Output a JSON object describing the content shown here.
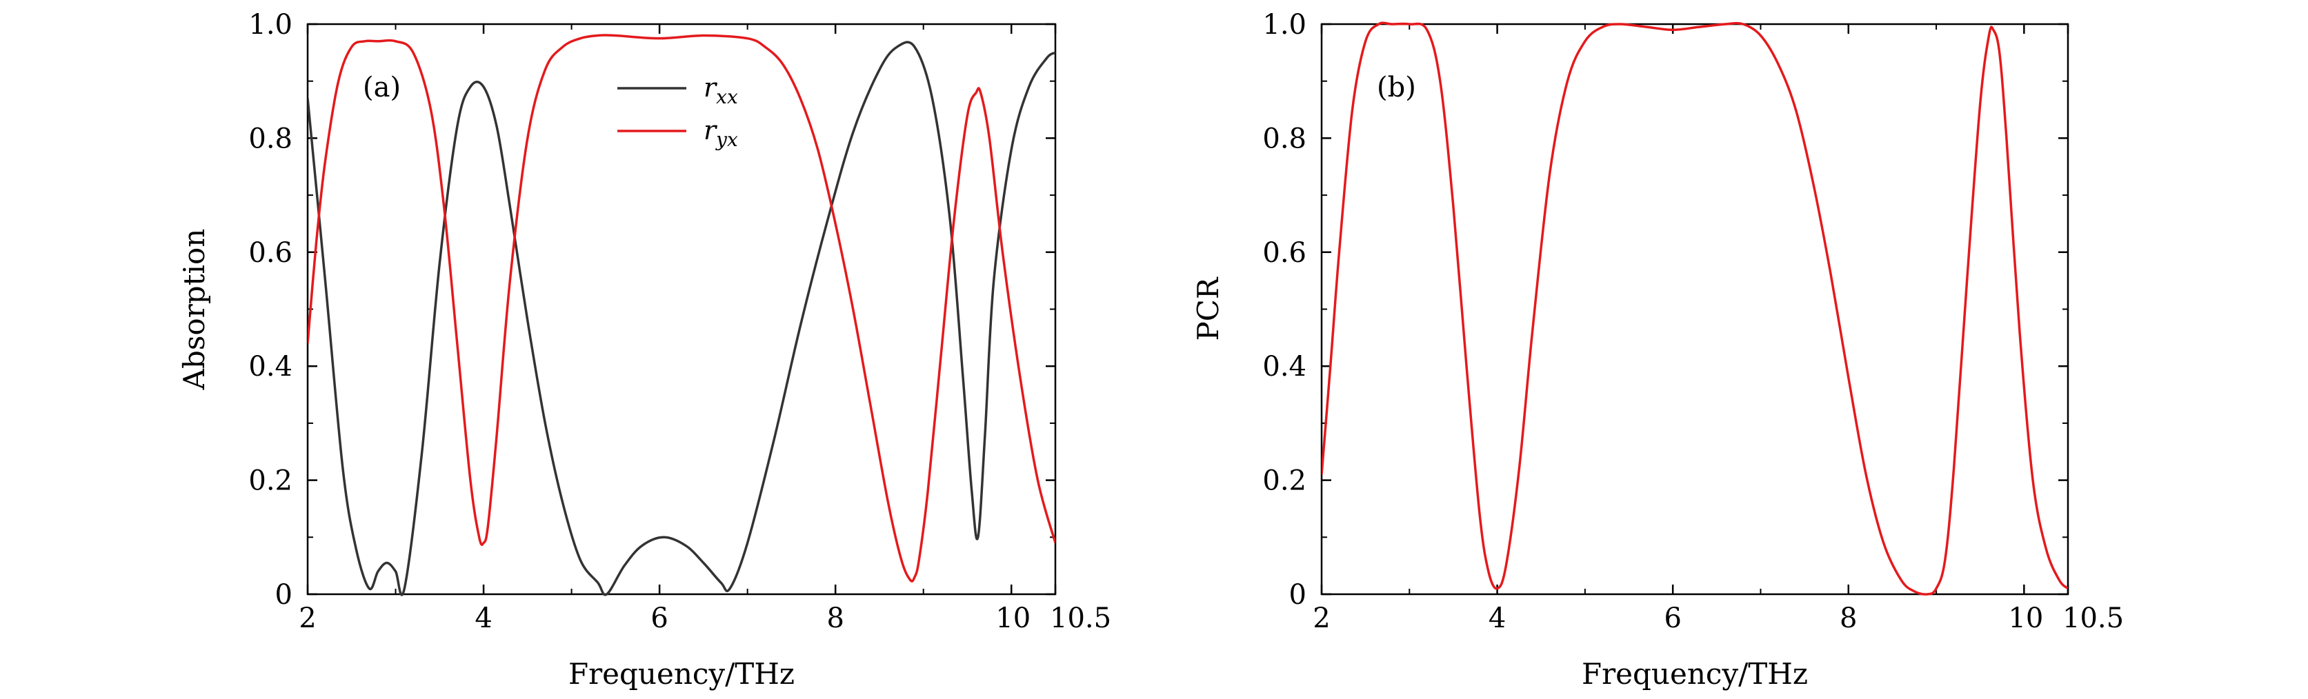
{
  "chart_data": [
    {
      "type": "line",
      "panel": "(a)",
      "xlabel": "Frequency/THz",
      "ylabel": "Absorption",
      "xlim": [
        2,
        10.5
      ],
      "ylim": [
        0,
        1.0
      ],
      "xticks": [
        2,
        4,
        6,
        8,
        10,
        10.5
      ],
      "xtick_labels": [
        "2",
        "4",
        "6",
        "8",
        "10",
        "10.5"
      ],
      "yticks": [
        0,
        0.2,
        0.4,
        0.6,
        0.8,
        1.0
      ],
      "ytick_labels": [
        "0",
        "0.2",
        "0.4",
        "0.6",
        "0.8",
        "1.0"
      ],
      "legend_position": "top-center",
      "grid": false,
      "series": [
        {
          "name": "r_xx",
          "name_main": "r",
          "name_sub": "xx",
          "color": "#333333",
          "x": [
            2.0,
            2.2,
            2.4,
            2.55,
            2.7,
            2.8,
            2.9,
            3.0,
            3.1,
            3.3,
            3.5,
            3.7,
            3.85,
            4.0,
            4.15,
            4.3,
            4.5,
            4.7,
            4.9,
            5.1,
            5.3,
            5.4,
            5.6,
            5.8,
            6.05,
            6.3,
            6.5,
            6.7,
            6.8,
            7.0,
            7.3,
            7.6,
            7.9,
            8.2,
            8.5,
            8.7,
            8.9,
            9.1,
            9.3,
            9.45,
            9.55,
            9.62,
            9.7,
            9.8,
            10.0,
            10.2,
            10.4,
            10.5
          ],
          "y": [
            0.87,
            0.55,
            0.22,
            0.08,
            0.01,
            0.04,
            0.055,
            0.04,
            0.01,
            0.25,
            0.58,
            0.82,
            0.89,
            0.89,
            0.82,
            0.68,
            0.48,
            0.3,
            0.16,
            0.06,
            0.02,
            0.0,
            0.05,
            0.085,
            0.1,
            0.085,
            0.055,
            0.02,
            0.01,
            0.09,
            0.27,
            0.47,
            0.65,
            0.81,
            0.92,
            0.96,
            0.96,
            0.87,
            0.66,
            0.38,
            0.18,
            0.1,
            0.28,
            0.55,
            0.78,
            0.89,
            0.94,
            0.95
          ]
        },
        {
          "name": "r_yx",
          "name_main": "r",
          "name_sub": "yx",
          "color": "#e41a1c",
          "x": [
            2.0,
            2.1,
            2.2,
            2.35,
            2.5,
            2.65,
            2.8,
            3.0,
            3.2,
            3.4,
            3.55,
            3.7,
            3.85,
            3.95,
            4.0,
            4.05,
            4.15,
            4.3,
            4.5,
            4.7,
            4.9,
            5.1,
            5.3,
            5.5,
            6.0,
            6.5,
            7.0,
            7.2,
            7.4,
            7.6,
            7.8,
            8.0,
            8.2,
            8.4,
            8.6,
            8.75,
            8.85,
            8.9,
            8.95,
            9.05,
            9.2,
            9.35,
            9.5,
            9.6,
            9.65,
            9.75,
            9.9,
            10.1,
            10.3,
            10.5
          ],
          "y": [
            0.44,
            0.62,
            0.76,
            0.9,
            0.96,
            0.97,
            0.97,
            0.97,
            0.95,
            0.85,
            0.68,
            0.44,
            0.2,
            0.1,
            0.09,
            0.12,
            0.28,
            0.55,
            0.8,
            0.92,
            0.96,
            0.975,
            0.98,
            0.98,
            0.975,
            0.98,
            0.975,
            0.96,
            0.93,
            0.87,
            0.78,
            0.65,
            0.5,
            0.33,
            0.16,
            0.06,
            0.025,
            0.03,
            0.06,
            0.18,
            0.42,
            0.66,
            0.84,
            0.88,
            0.88,
            0.8,
            0.6,
            0.38,
            0.2,
            0.09
          ]
        }
      ]
    },
    {
      "type": "line",
      "panel": "(b)",
      "xlabel": "Frequency/THz",
      "ylabel": "PCR",
      "xlim": [
        2,
        10.5
      ],
      "ylim": [
        0,
        1.0
      ],
      "xticks": [
        2,
        4,
        6,
        8,
        10,
        10.5
      ],
      "xtick_labels": [
        "2",
        "4",
        "6",
        "8",
        "10",
        "10.5"
      ],
      "yticks": [
        0,
        0.2,
        0.4,
        0.6,
        0.8,
        1.0
      ],
      "ytick_labels": [
        "0",
        "0.2",
        "0.4",
        "0.6",
        "0.8",
        "1.0"
      ],
      "grid": false,
      "series": [
        {
          "color": "#e41a1c",
          "x": [
            2.0,
            2.1,
            2.2,
            2.35,
            2.5,
            2.65,
            2.8,
            3.0,
            3.2,
            3.35,
            3.5,
            3.65,
            3.8,
            3.9,
            4.0,
            4.1,
            4.25,
            4.4,
            4.6,
            4.8,
            5.0,
            5.2,
            5.4,
            5.7,
            6.0,
            6.3,
            6.6,
            6.8,
            7.0,
            7.2,
            7.4,
            7.6,
            7.8,
            8.0,
            8.2,
            8.4,
            8.6,
            8.75,
            8.9,
            9.0,
            9.1,
            9.2,
            9.35,
            9.5,
            9.6,
            9.65,
            9.72,
            9.8,
            9.95,
            10.1,
            10.25,
            10.4,
            10.5
          ],
          "y": [
            0.21,
            0.4,
            0.6,
            0.85,
            0.97,
            1.0,
            1.0,
            1.0,
            0.99,
            0.9,
            0.68,
            0.4,
            0.14,
            0.04,
            0.01,
            0.05,
            0.22,
            0.46,
            0.74,
            0.9,
            0.97,
            0.995,
            1.0,
            0.995,
            0.99,
            0.995,
            1.0,
            1.0,
            0.98,
            0.93,
            0.85,
            0.72,
            0.56,
            0.38,
            0.21,
            0.09,
            0.025,
            0.005,
            0.0,
            0.01,
            0.06,
            0.22,
            0.55,
            0.86,
            0.98,
            0.99,
            0.95,
            0.8,
            0.46,
            0.2,
            0.08,
            0.025,
            0.01
          ]
        }
      ]
    }
  ]
}
